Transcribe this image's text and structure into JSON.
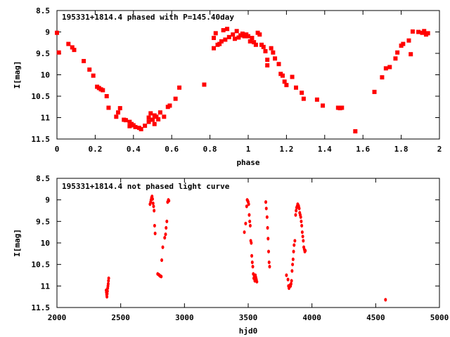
{
  "colors": {
    "marker": "#ff0000",
    "axis": "#000000",
    "background": "#ffffff"
  },
  "chart_data": [
    {
      "type": "scatter",
      "title": "195331+1814.4 phased with P=145.40day",
      "xlabel": "phase",
      "ylabel": "I[mag]",
      "xlim": [
        0,
        2
      ],
      "ylim": [
        8.5,
        11.5
      ],
      "y_inverted": true,
      "grid": false,
      "legend": "none",
      "marker": "filled square",
      "x_ticks": [
        "0",
        "0.2",
        "0.4",
        "0.6",
        "0.8",
        "1",
        "1.2",
        "1.4",
        "1.6",
        "1.8",
        "2"
      ],
      "y_ticks": [
        "8.5",
        "9",
        "9.5",
        "10",
        "10.5",
        "11",
        "11.5"
      ],
      "series": [
        {
          "x": [
            0.0,
            0.01,
            0.06,
            0.08,
            0.09,
            0.14,
            0.17,
            0.19,
            0.21,
            0.22,
            0.23,
            0.24,
            0.26,
            0.27,
            0.31,
            0.32,
            0.33,
            0.35,
            0.36,
            0.38,
            0.38,
            0.39,
            0.4,
            0.41,
            0.43,
            0.44,
            0.46,
            0.48,
            0.48,
            0.49,
            0.5,
            0.51,
            0.51,
            0.52,
            0.53,
            0.54,
            0.56,
            0.58,
            0.59,
            0.62,
            0.64,
            0.77,
            0.82,
            0.82,
            0.83,
            0.84,
            0.85,
            0.86,
            0.87,
            0.88,
            0.89,
            0.9,
            0.92,
            0.93,
            0.94,
            0.95,
            0.96,
            0.97,
            0.98,
            0.99,
            1.0,
            1.01,
            1.02,
            1.03,
            1.04,
            1.05,
            1.06,
            1.07,
            1.08,
            1.09,
            1.1,
            1.1,
            1.12,
            1.13,
            1.14,
            1.16,
            1.17,
            1.18,
            1.19,
            1.2,
            1.23,
            1.25,
            1.28,
            1.29,
            1.36,
            1.39,
            1.47,
            1.48,
            1.49,
            1.56,
            1.66,
            1.7,
            1.72,
            1.74,
            1.77,
            1.78,
            1.8,
            1.81,
            1.84,
            1.85,
            1.86,
            1.89,
            1.91,
            1.92,
            1.93,
            1.94
          ],
          "y": [
            9.02,
            9.48,
            9.28,
            9.36,
            9.42,
            9.68,
            9.88,
            10.02,
            10.28,
            10.31,
            10.34,
            10.36,
            10.5,
            10.77,
            10.98,
            10.88,
            10.78,
            11.05,
            11.06,
            11.2,
            11.1,
            11.15,
            11.18,
            11.22,
            11.24,
            11.27,
            11.19,
            11.0,
            11.1,
            10.9,
            11.05,
            10.95,
            11.15,
            10.98,
            11.04,
            10.88,
            10.98,
            10.75,
            10.72,
            10.56,
            10.3,
            10.23,
            9.14,
            9.38,
            9.03,
            9.3,
            9.28,
            9.22,
            8.96,
            9.18,
            8.93,
            9.12,
            9.06,
            9.16,
            8.98,
            9.13,
            9.08,
            9.04,
            9.1,
            9.06,
            9.1,
            9.22,
            9.14,
            9.24,
            9.3,
            9.02,
            9.06,
            9.3,
            9.35,
            9.45,
            9.65,
            9.78,
            9.38,
            9.48,
            9.62,
            9.75,
            9.98,
            10.02,
            10.16,
            10.24,
            10.05,
            10.3,
            10.42,
            10.56,
            10.58,
            10.72,
            10.77,
            10.78,
            10.77,
            11.32,
            10.4,
            10.06,
            9.85,
            9.82,
            9.62,
            9.48,
            9.32,
            9.28,
            9.2,
            9.52,
            8.99,
            9.0,
            9.02,
            8.98,
            9.06,
            9.03
          ]
        }
      ]
    },
    {
      "type": "scatter",
      "title": "195331+1814.4 not phased light curve",
      "xlabel": "hjd0",
      "ylabel": "I[mag]",
      "xlim": [
        2000,
        5000
      ],
      "ylim": [
        8.5,
        11.5
      ],
      "y_inverted": true,
      "grid": false,
      "legend": "none",
      "marker": "filled circle",
      "x_ticks": [
        "2000",
        "2500",
        "3000",
        "3500",
        "4000",
        "4500",
        "5000"
      ],
      "y_ticks": [
        "8.5",
        "9",
        "9.5",
        "10",
        "10.5",
        "11",
        "11.5"
      ],
      "series": [
        {
          "x": [
            2386,
            2388,
            2390,
            2392,
            2394,
            2396,
            2398,
            2400,
            2402,
            2404,
            2406,
            2730,
            2735,
            2738,
            2742,
            2746,
            2750,
            2754,
            2758,
            2762,
            2766,
            2770,
            2790,
            2800,
            2806,
            2812,
            2818,
            2822,
            2830,
            2845,
            2852,
            2856,
            2862,
            2868,
            2874,
            2878,
            3470,
            3480,
            3488,
            3492,
            3496,
            3500,
            3504,
            3508,
            3512,
            3516,
            3520,
            3524,
            3528,
            3532,
            3536,
            3540,
            3544,
            3548,
            3552,
            3556,
            3560,
            3564,
            3568,
            3638,
            3642,
            3648,
            3652,
            3656,
            3660,
            3664,
            3668,
            3800,
            3812,
            3816,
            3820,
            3824,
            3828,
            3832,
            3836,
            3840,
            3844,
            3848,
            3852,
            3856,
            3860,
            3866,
            3872,
            3876,
            3880,
            3884,
            3888,
            3892,
            3896,
            3900,
            3904,
            3908,
            3912,
            3916,
            3920,
            3924,
            3928,
            3932,
            3936,
            3940,
            3944,
            3948,
            4577
          ],
          "y": [
            11.1,
            11.15,
            11.2,
            11.25,
            11.18,
            11.12,
            11.05,
            11.0,
            10.95,
            10.88,
            10.82,
            9.1,
            9.05,
            9.0,
            8.95,
            8.92,
            8.98,
            9.08,
            9.15,
            9.25,
            9.6,
            9.78,
            10.72,
            10.74,
            10.76,
            10.77,
            10.78,
            10.4,
            10.1,
            9.88,
            9.8,
            9.65,
            9.5,
            9.05,
            9.0,
            9.02,
            9.75,
            9.55,
            9.15,
            9.0,
            9.02,
            9.05,
            9.1,
            9.35,
            9.5,
            9.6,
            9.95,
            10.0,
            10.3,
            10.45,
            10.55,
            10.72,
            10.82,
            10.78,
            10.88,
            10.75,
            10.8,
            10.85,
            10.9,
            9.05,
            9.2,
            9.4,
            9.65,
            9.9,
            10.2,
            10.45,
            10.55,
            10.75,
            10.85,
            11.0,
            11.05,
            11.02,
            10.98,
            11.0,
            10.95,
            10.88,
            10.65,
            10.5,
            10.38,
            10.2,
            10.05,
            9.95,
            9.35,
            9.25,
            9.18,
            9.15,
            9.1,
            9.12,
            9.15,
            9.2,
            9.3,
            9.35,
            9.4,
            9.5,
            9.6,
            9.75,
            9.85,
            9.95,
            10.1,
            10.15,
            10.2,
            10.18,
            11.32
          ]
        }
      ]
    }
  ]
}
